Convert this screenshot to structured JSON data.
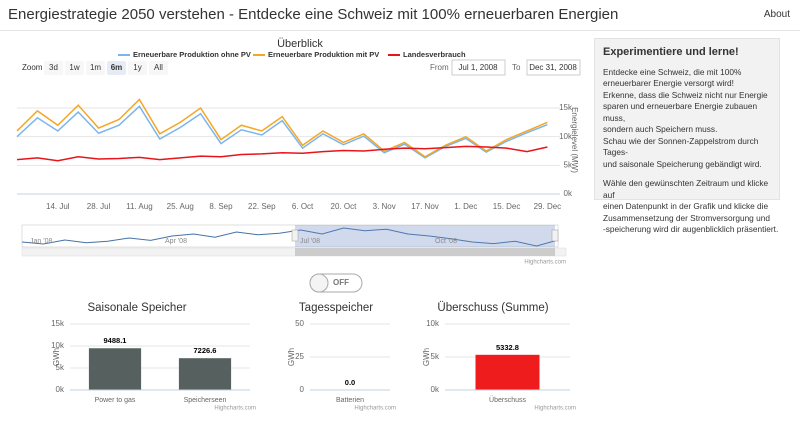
{
  "header": {
    "title": "Energiestrategie 2050 verstehen - Entdecke eine Schweiz mit 100% erneuerbaren Energien",
    "about": "About"
  },
  "range_selector": {
    "zoom_label": "Zoom",
    "buttons": [
      "3d",
      "1w",
      "1m",
      "6m",
      "1y",
      "All"
    ],
    "selected": 3,
    "from_label": "From",
    "from": "Jul 1, 2008",
    "to_label": "To",
    "to": "Dec 31, 2008"
  },
  "sidebar": {
    "heading": "Experimentiere und lerne!",
    "paragraphs": [
      [
        "Entdecke eine Schweiz, die mit 100%",
        "erneuerbarer Energie versorgt wird!",
        "Erkenne, dass die Schweiz nicht nur Energie",
        "sparen und erneuerbare Energie zubauen muss,",
        "sondern auch Speichern muss.",
        "Schau wie der Sonnen-Zappelstrom durch Tages-",
        "und saisonale Speicherung gebändigt wird."
      ],
      [
        "Wähle den gewünschten Zeitraum und klicke auf",
        "einen Datenpunkt in der Grafik und klicke die",
        "Zusammensetzung der Stromversorgung und",
        "-speicherung wird dir augenblicklich präsentiert."
      ]
    ]
  },
  "toggle": "OFF",
  "credits": "Highcharts.com",
  "navigator": {
    "labels": [
      "Jan '08",
      "Apr '08",
      "Jul '08",
      "Oct '08"
    ],
    "color": "#4572a7",
    "values": [
      9000,
      8500,
      9500,
      8800,
      9200,
      10000,
      9400,
      10500,
      11000,
      10200,
      11500,
      10800,
      11200,
      12000,
      11000,
      12500,
      11800,
      12200,
      11000,
      10500,
      9800,
      9000,
      8600,
      9200,
      8000,
      9500
    ]
  },
  "chart_data": [
    {
      "type": "line",
      "title": "Überblick",
      "y_label": "Energielevel (MW)",
      "categories": [
        null,
        null,
        "14. Jul",
        null,
        "28. Jul",
        null,
        "11. Aug",
        null,
        "25. Aug",
        null,
        "8. Sep",
        null,
        "22. Sep",
        null,
        "6. Oct",
        null,
        "20. Oct",
        null,
        "3. Nov",
        null,
        "17. Nov",
        null,
        "1. Dec",
        null,
        "15. Dec",
        null,
        "29. Dec"
      ],
      "series": [
        {
          "name": "Erneuerbare Produktion ohne PV",
          "color": "#7cb5ec",
          "values": [
            10000,
            13300,
            11000,
            14300,
            10600,
            12000,
            15300,
            9600,
            11600,
            14000,
            8800,
            11200,
            10300,
            12800,
            8000,
            10500,
            8600,
            10100,
            7200,
            8700,
            6300,
            8300,
            9700,
            7300,
            9200,
            10700,
            12100
          ]
        },
        {
          "name": "Erneuerbare Produktion mit PV",
          "color": "#f5a623",
          "values": [
            11000,
            14500,
            12000,
            15500,
            11500,
            13000,
            16500,
            10500,
            12500,
            15000,
            9500,
            12000,
            11000,
            13500,
            8500,
            11000,
            9000,
            10500,
            7500,
            9000,
            6500,
            8500,
            10000,
            7500,
            9500,
            11000,
            12500
          ]
        },
        {
          "name": "Landesverbrauch",
          "color": "#e8141c",
          "values": [
            6000,
            6300,
            5800,
            6500,
            6100,
            6200,
            6400,
            6000,
            6300,
            6600,
            6500,
            6900,
            7000,
            7200,
            7100,
            7400,
            7600,
            7500,
            7800,
            8000,
            7900,
            8100,
            8300,
            8200,
            8000,
            7400,
            8200
          ]
        }
      ],
      "ylim": [
        0,
        17500
      ],
      "yticks": [
        {
          "value": 0,
          "label": "0k"
        },
        {
          "value": 5000,
          "label": "5k"
        },
        {
          "value": 10000,
          "label": "10k"
        },
        {
          "value": 15000,
          "label": "15k"
        }
      ],
      "grid": true
    },
    {
      "type": "bar",
      "title": "Saisonale Speicher",
      "y_label": "GWh",
      "categories": [
        "Power to gas",
        "Speicherseen"
      ],
      "values": [
        9488.1,
        7226.6
      ],
      "value_labels": [
        "9488.1",
        "7226.6"
      ],
      "color": "#56605f",
      "ylim": [
        0,
        15000
      ],
      "yticks": [
        {
          "value": 0,
          "label": "0k"
        },
        {
          "value": 5000,
          "label": "5k"
        },
        {
          "value": 10000,
          "label": "10k"
        },
        {
          "value": 15000,
          "label": "15k"
        }
      ],
      "grid": true
    },
    {
      "type": "bar",
      "title": "Tagesspeicher",
      "y_label": "GWh",
      "categories": [
        "Batterien"
      ],
      "values": [
        0
      ],
      "value_labels": [
        "0.0"
      ],
      "color": "#56605f",
      "ylim": [
        0,
        50
      ],
      "yticks": [
        0,
        25,
        50
      ],
      "grid": true
    },
    {
      "type": "bar",
      "title": "Überschuss (Summe)",
      "y_label": "GWh",
      "categories": [
        "Überschuss"
      ],
      "values": [
        5332.8
      ],
      "value_labels": [
        "5332.8"
      ],
      "color": "#ee1c1c",
      "ylim": [
        0,
        10000
      ],
      "yticks": [
        {
          "value": 0,
          "label": "0k"
        },
        {
          "value": 5000,
          "label": "5k"
        },
        {
          "value": 10000,
          "label": "10k"
        }
      ],
      "grid": true
    }
  ]
}
